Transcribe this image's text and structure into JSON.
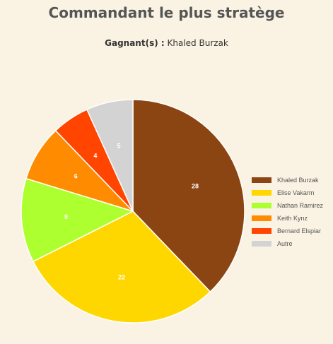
{
  "page": {
    "title": "Commandant le plus stratège",
    "winners_label": "Gagnant(s) :",
    "winners_value": "Khaled Burzak"
  },
  "chart_data": {
    "type": "pie",
    "title": "",
    "categories": [
      "Khaled Burzak",
      "Elise Vakarm",
      "Nathan Ramirez",
      "Keith Kynz",
      "Bernard Elspiar",
      "Autre"
    ],
    "values": [
      28,
      22,
      9,
      6,
      4,
      5
    ],
    "colors": [
      "#8b4513",
      "#ffd700",
      "#adff2f",
      "#ff8c00",
      "#ff4500",
      "#d3d3d3"
    ],
    "start_angle": "12 o'clock, clockwise",
    "data_labels": true,
    "legend_placement": "right"
  }
}
